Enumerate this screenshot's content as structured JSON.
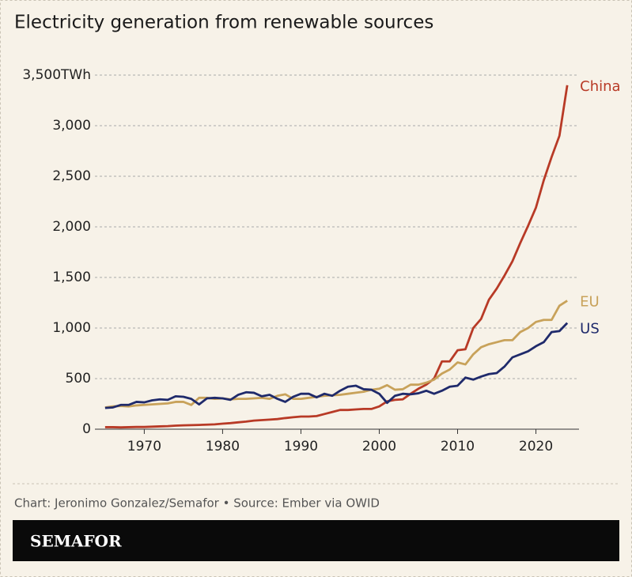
{
  "chart_data": {
    "type": "line",
    "title": "Electricity generation from renewable sources",
    "source": "Chart: Jeronimo Gonzalez/Semafor • Source: Ember via OWID",
    "brand": "SEMAFOR",
    "x": [
      1965,
      1966,
      1967,
      1968,
      1969,
      1970,
      1971,
      1972,
      1973,
      1974,
      1975,
      1976,
      1977,
      1978,
      1979,
      1980,
      1981,
      1982,
      1983,
      1984,
      1985,
      1986,
      1987,
      1988,
      1989,
      1990,
      1991,
      1992,
      1993,
      1994,
      1995,
      1996,
      1997,
      1998,
      1999,
      2000,
      2001,
      2002,
      2003,
      2004,
      2005,
      2006,
      2007,
      2008,
      2009,
      2010,
      2011,
      2012,
      2013,
      2014,
      2015,
      2016,
      2017,
      2018,
      2019,
      2020,
      2021,
      2022,
      2023,
      2024
    ],
    "series": [
      {
        "name": "China",
        "color": "#b83a26",
        "values": [
          20,
          20,
          18,
          20,
          22,
          22,
          25,
          28,
          30,
          35,
          38,
          40,
          42,
          45,
          48,
          55,
          60,
          68,
          75,
          85,
          90,
          95,
          100,
          110,
          118,
          125,
          125,
          130,
          150,
          170,
          190,
          190,
          195,
          200,
          200,
          225,
          275,
          290,
          295,
          350,
          400,
          440,
          500,
          670,
          670,
          780,
          790,
          1000,
          1090,
          1280,
          1390,
          1520,
          1660,
          1840,
          2010,
          2190,
          2460,
          2690,
          2900,
          3400
        ]
      },
      {
        "name": "EU",
        "color": "#c8a25a",
        "values": [
          215,
          225,
          230,
          225,
          235,
          240,
          245,
          250,
          255,
          270,
          270,
          240,
          310,
          310,
          300,
          305,
          295,
          300,
          300,
          305,
          310,
          300,
          330,
          345,
          300,
          300,
          310,
          320,
          330,
          335,
          340,
          350,
          360,
          370,
          390,
          400,
          435,
          390,
          395,
          440,
          440,
          460,
          490,
          550,
          590,
          660,
          640,
          740,
          810,
          840,
          860,
          880,
          880,
          960,
          1000,
          1060,
          1080,
          1080,
          1220,
          1270
        ]
      },
      {
        "name": "US",
        "color": "#1f2a6b",
        "values": [
          210,
          215,
          240,
          240,
          270,
          265,
          285,
          295,
          290,
          325,
          320,
          300,
          245,
          305,
          310,
          305,
          290,
          340,
          365,
          360,
          325,
          340,
          300,
          270,
          320,
          350,
          350,
          315,
          350,
          330,
          380,
          420,
          430,
          395,
          390,
          350,
          260,
          330,
          350,
          345,
          355,
          380,
          350,
          380,
          420,
          430,
          510,
          490,
          520,
          545,
          555,
          620,
          710,
          740,
          770,
          820,
          860,
          960,
          970,
          1050
        ]
      }
    ],
    "xlim": [
      1963.7,
      2025.5
    ],
    "xticks": [
      1970,
      1980,
      1990,
      2000,
      2010,
      2020
    ],
    "ylim": [
      0,
      3500
    ],
    "yticks": [
      0,
      500,
      {
        "value": 1000,
        "label": "1,000"
      },
      {
        "value": 1500,
        "label": "1,500"
      },
      {
        "value": 2000,
        "label": "2,000"
      },
      {
        "value": 2500,
        "label": "2,500"
      },
      {
        "value": 3000,
        "label": "3,000"
      },
      {
        "value": 3500,
        "label": "3,500TWh"
      }
    ],
    "grid": true
  }
}
